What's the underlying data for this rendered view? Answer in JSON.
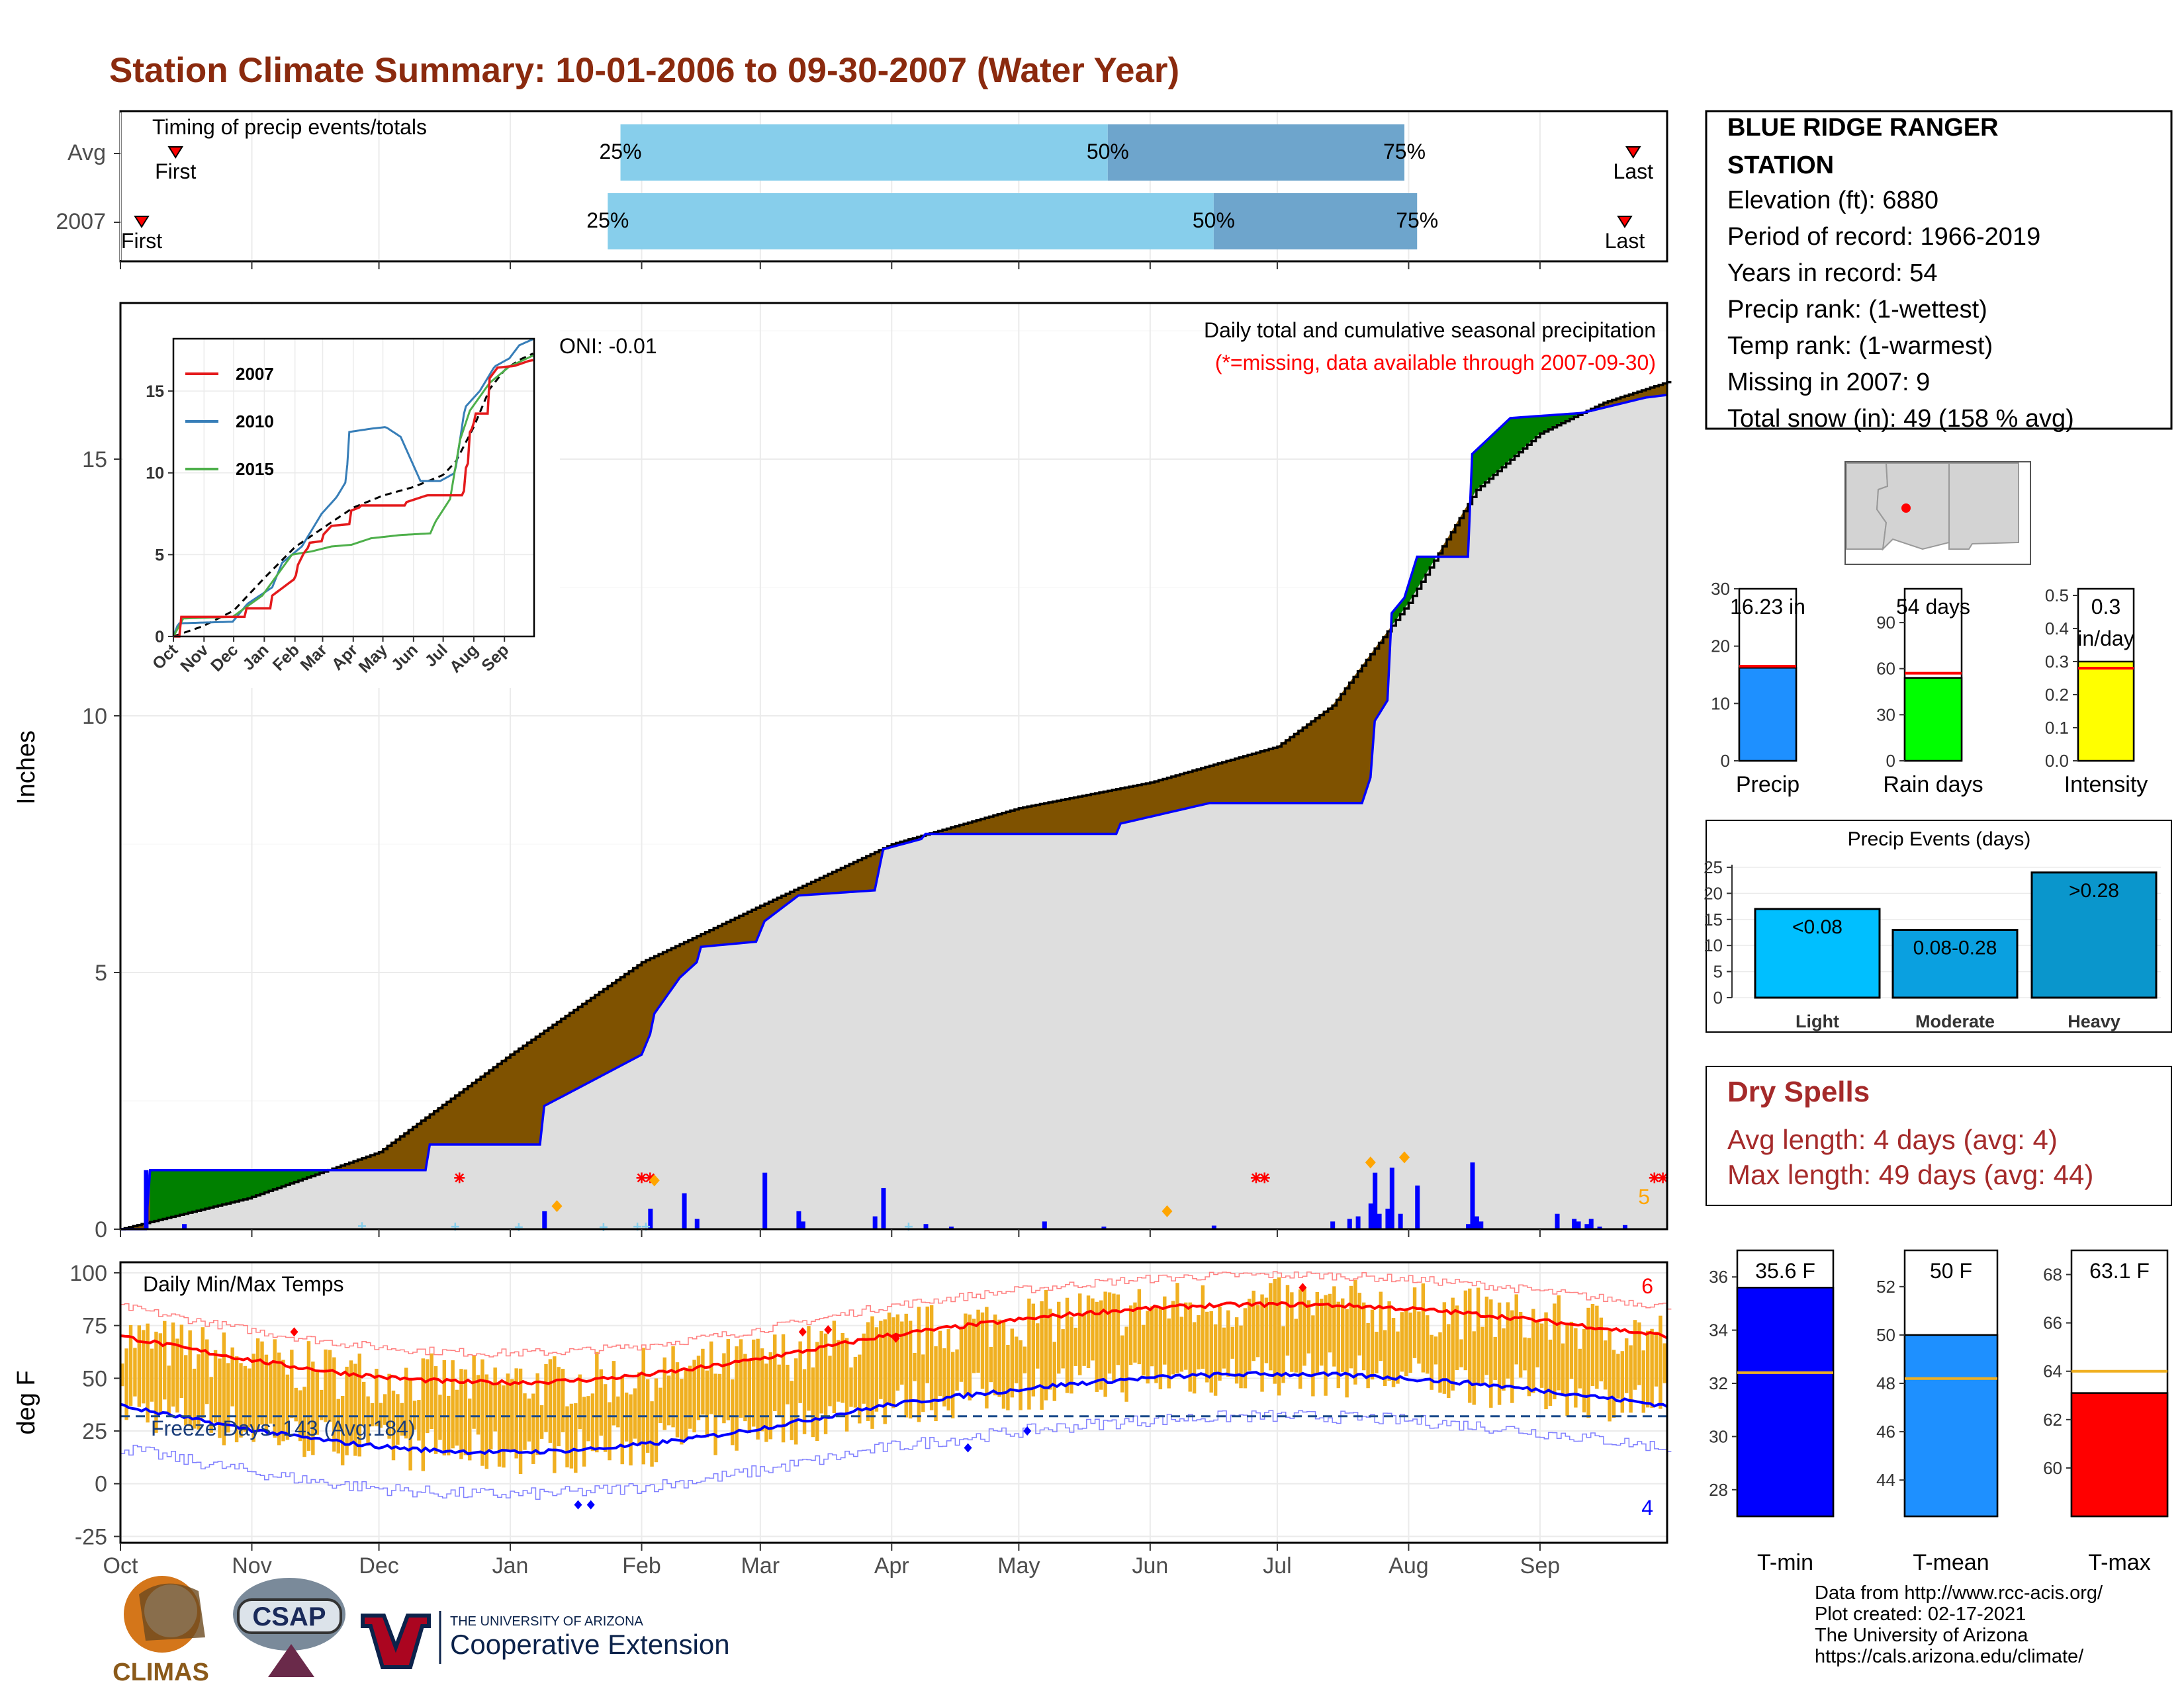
{
  "title": "Station Climate Summary: 10-01-2006 to 09-30-2007 (Water Year)",
  "month_labels": [
    "Oct",
    "Nov",
    "Dec",
    "Jan",
    "Feb",
    "Mar",
    "Apr",
    "May",
    "Jun",
    "Jul",
    "Aug",
    "Sep"
  ],
  "timing": {
    "label": "Timing of precip events/totals",
    "rows": [
      {
        "label": "Avg",
        "first": "First",
        "last": "Last",
        "p25": "25%",
        "p50": "50%",
        "p75": "75%",
        "first_day": 13,
        "p25_day": 118,
        "p50_day": 233,
        "p75_day": 303,
        "last_day": 357
      },
      {
        "label": "2007",
        "first": "First",
        "last": "Last",
        "p25": "25%",
        "p50": "50%",
        "p75": "75%",
        "first_day": 5,
        "p25_day": 115,
        "p50_day": 258,
        "p75_day": 306,
        "last_day": 355
      }
    ],
    "colors": {
      "q1": "#87ceeb",
      "q2": "#6ea5cc"
    }
  },
  "precip_panel": {
    "ylabel": "Inches",
    "oni": "ONI: -0.01",
    "note1": "Daily total and cumulative seasonal precipitation",
    "note2": "(*=missing, data available through 2007-09-30)",
    "missing_count": "5",
    "yticks": [
      "0",
      "5",
      "10",
      "15"
    ]
  },
  "inset": {
    "legend": [
      "2007",
      "2010",
      "2015"
    ],
    "colors": [
      "#e41a1c",
      "#377eb8",
      "#4daf4a"
    ],
    "yticks": [
      "0",
      "5",
      "10",
      "15"
    ],
    "xticks": [
      "Oct",
      "Nov",
      "Dec",
      "Jan",
      "Feb",
      "Mar",
      "Apr",
      "May",
      "Jun",
      "Jul",
      "Aug",
      "Sep"
    ]
  },
  "station": {
    "name1": "BLUE RIDGE RANGER",
    "name2": "STATION",
    "elevation": "Elevation (ft): 6880",
    "period": "Period of record: 1966-2019",
    "years": "Years in record: 54",
    "precip_rank": "Precip rank:  (1-wettest)",
    "temp_rank": "Temp rank:  (1-warmest)",
    "missing": "Missing in 2007: 9",
    "snow": "Total snow (in): 49 (158 % avg)"
  },
  "summary_bars": [
    {
      "label": "Precip",
      "value_text": "16.23 in",
      "value": 16.23,
      "avg": 16.5,
      "max": 30,
      "ticks": [
        "0",
        "10",
        "20",
        "30"
      ],
      "tickvals": [
        0,
        10,
        20,
        30
      ],
      "color": "#1e90ff"
    },
    {
      "label": "Rain days",
      "value_text": "54 days",
      "value": 54,
      "avg": 57,
      "max": 112,
      "ticks": [
        "0",
        "30",
        "60",
        "90"
      ],
      "tickvals": [
        0,
        30,
        60,
        90
      ],
      "color": "#00ff00"
    },
    {
      "label": "Intensity",
      "value_text": "0.3",
      "value_text2": "in/day",
      "value": 0.3,
      "avg": 0.28,
      "max": 0.52,
      "ticks": [
        "0.0",
        "0.1",
        "0.2",
        "0.3",
        "0.4",
        "0.5"
      ],
      "tickvals": [
        0,
        0.1,
        0.2,
        0.3,
        0.4,
        0.5
      ],
      "color": "#ffff00"
    }
  ],
  "events": {
    "title": "Precip Events (days)",
    "categories": [
      "Light",
      "Moderate",
      "Heavy"
    ],
    "labels": [
      "<0.08",
      "0.08-0.28",
      ">0.28"
    ],
    "values": [
      17,
      13,
      24
    ],
    "colors": [
      "#00bfff",
      "#0aa0e0",
      "#0a96cc"
    ],
    "yticks": [
      "0",
      "5",
      "10",
      "15",
      "20",
      "25"
    ]
  },
  "dry_spells": {
    "title": "Dry Spells",
    "avg": "Avg length: 4 days (avg: 4)",
    "max": "Max length: 49 days (avg: 44)"
  },
  "temp_panel": {
    "label": "Daily Min/Max Temps",
    "ylabel": "deg F",
    "freeze": "Freeze Days: 143 (Avg:184)",
    "yticks": [
      "-25",
      "0",
      "25",
      "50",
      "75",
      "100"
    ],
    "count_max": "6",
    "count_min": "4"
  },
  "temp_bars": [
    {
      "label": "T-min",
      "value_text": "35.6 F",
      "value": 35.6,
      "avg": 32.4,
      "min": 27,
      "max": 37,
      "ticks": [
        "28",
        "30",
        "32",
        "34",
        "36"
      ],
      "color": "#0000ff"
    },
    {
      "label": "T-mean",
      "value_text": "50 F",
      "value": 50.0,
      "avg": 48.2,
      "min": 42.5,
      "max": 53.5,
      "ticks": [
        "44",
        "46",
        "48",
        "50",
        "52"
      ],
      "color": "#1e90ff"
    },
    {
      "label": "T-max",
      "value_text": "63.1 F",
      "value": 63.1,
      "avg": 64.0,
      "min": 58,
      "max": 69,
      "ticks": [
        "60",
        "62",
        "64",
        "66",
        "68"
      ],
      "color": "#ff0000"
    }
  ],
  "credits": {
    "line1": "Data from http://www.rcc-acis.org/",
    "line2": "Plot created: 02-17-2021",
    "line3": "The University of Arizona",
    "line4": "https://cals.arizona.edu/climate/"
  },
  "logos": {
    "climas": "CLIMAS",
    "csap": "CSAP",
    "ua_small": "THE UNIVERSITY OF ARIZONA",
    "ua_big": "Cooperative Extension"
  }
}
